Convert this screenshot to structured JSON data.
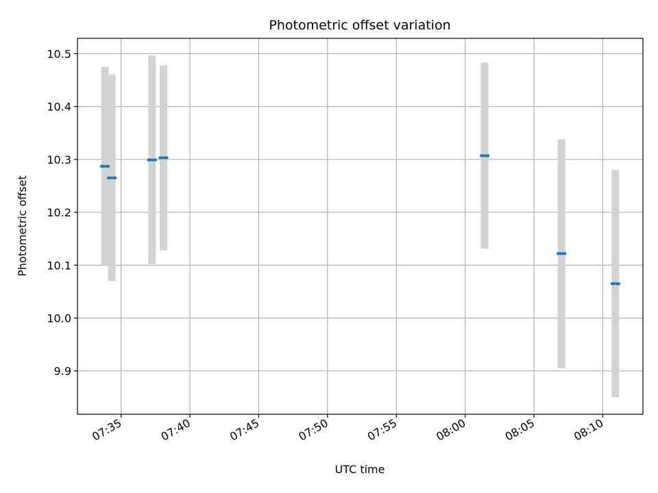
{
  "chart_data": {
    "type": "scatter",
    "title": "Photometric offset variation",
    "xlabel": "UTC time",
    "ylabel": "Photometric offset",
    "grid": true,
    "xlim": [
      "07:31:50",
      "08:12:55"
    ],
    "ylim": [
      9.818,
      10.529
    ],
    "x_ticks": [
      "07:35",
      "07:40",
      "07:45",
      "07:50",
      "07:55",
      "08:00",
      "08:05",
      "08:10"
    ],
    "y_ticks": [
      "9.9",
      "10.0",
      "10.1",
      "10.2",
      "10.3",
      "10.4",
      "10.5"
    ],
    "colors": {
      "point": "#1f77b4",
      "errorbar": "#d3d3d3",
      "grid": "#b0b0b0"
    },
    "points": [
      {
        "x": "07:33:50",
        "y": 10.287,
        "y_low": 10.1,
        "y_high": 10.475
      },
      {
        "x": "07:34:20",
        "y": 10.265,
        "y_low": 10.07,
        "y_high": 10.461
      },
      {
        "x": "07:37:15",
        "y": 10.299,
        "y_low": 10.102,
        "y_high": 10.497
      },
      {
        "x": "07:38:05",
        "y": 10.303,
        "y_low": 10.128,
        "y_high": 10.478
      },
      {
        "x": "08:01:25",
        "y": 10.307,
        "y_low": 10.131,
        "y_high": 10.483
      },
      {
        "x": "08:07:00",
        "y": 10.122,
        "y_low": 9.905,
        "y_high": 10.338
      },
      {
        "x": "08:10:55",
        "y": 10.065,
        "y_low": 9.85,
        "y_high": 10.28
      }
    ]
  }
}
